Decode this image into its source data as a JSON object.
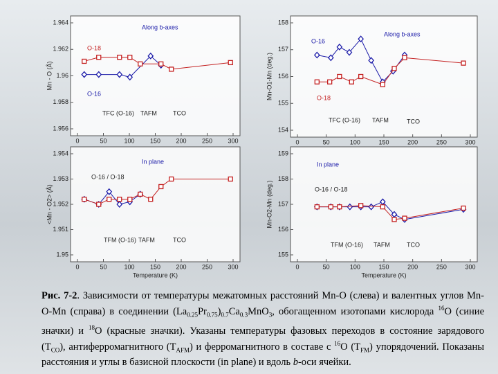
{
  "chart_data": [
    {
      "type": "line",
      "ylabel": "Mn - O (Å)",
      "xlim": [
        0,
        300
      ],
      "xticks": [
        0,
        50,
        100,
        150,
        200,
        250,
        300
      ],
      "ylim": [
        1.956,
        1.964
      ],
      "yticks": [
        1.956,
        1.958,
        1.96,
        1.962,
        1.964
      ],
      "annotations": [
        "Along b-axes",
        "O-18",
        "O-16",
        "TFC (O-16)",
        "TAFM",
        "TCO"
      ],
      "series": [
        {
          "name": "O-16",
          "color": "#1a1aa8",
          "x": [
            13,
            41,
            81,
            101,
            141,
            161
          ],
          "values": [
            1.9601,
            1.9601,
            1.9601,
            1.9599,
            1.9615,
            1.9608
          ]
        },
        {
          "name": "O-18",
          "color": "#c42020",
          "x": [
            13,
            41,
            81,
            101,
            121,
            161,
            181,
            295
          ],
          "values": [
            1.9611,
            1.9614,
            1.9614,
            1.9614,
            1.9609,
            1.9609,
            1.9605,
            1.961
          ]
        }
      ]
    },
    {
      "type": "line",
      "ylabel": "Mn-O1-Mn (deg.)",
      "xlim": [
        0,
        300
      ],
      "xticks": [
        0,
        50,
        100,
        150,
        200,
        250,
        300
      ],
      "ylim": [
        154,
        158
      ],
      "yticks": [
        154,
        155,
        156,
        157,
        158
      ],
      "annotations": [
        "O-16",
        "Along b-axes",
        "O-18",
        "TFC (O-16)",
        "TAFM",
        "TCO"
      ],
      "series": [
        {
          "name": "O-16",
          "color": "#1a1aa8",
          "x": [
            34,
            58,
            73,
            90,
            110,
            128,
            148,
            166,
            186
          ],
          "values": [
            156.8,
            156.7,
            157.1,
            156.9,
            157.4,
            156.6,
            155.8,
            156.2,
            156.8
          ]
        },
        {
          "name": "O-18",
          "color": "#c42020",
          "x": [
            34,
            56,
            73,
            94,
            110,
            148,
            168,
            186,
            288
          ],
          "values": [
            155.8,
            155.8,
            156,
            155.8,
            156,
            155.7,
            156.3,
            156.7,
            156.5
          ]
        }
      ]
    },
    {
      "type": "line",
      "ylabel": "<Mn - O2> (Å)",
      "xlabel": "Temperature (K)",
      "xlim": [
        0,
        300
      ],
      "xticks": [
        0,
        50,
        100,
        150,
        200,
        250,
        300
      ],
      "ylim": [
        1.95,
        1.954
      ],
      "yticks": [
        1.95,
        1.951,
        1.952,
        1.953,
        1.954
      ],
      "annotations": [
        "In plane",
        "O-16 / O-18",
        "TFM (O-16)",
        "TAFM",
        "TCO"
      ],
      "series": [
        {
          "name": "O-16",
          "color": "#1a1aa8",
          "x": [
            13,
            41,
            61,
            81,
            101,
            121
          ],
          "values": [
            1.9522,
            1.952,
            1.9525,
            1.952,
            1.9521,
            1.9524
          ]
        },
        {
          "name": "O-18",
          "color": "#c42020",
          "x": [
            13,
            41,
            61,
            81,
            101,
            121,
            141,
            161,
            181,
            295
          ],
          "values": [
            1.9522,
            1.952,
            1.9522,
            1.9522,
            1.9522,
            1.9524,
            1.9522,
            1.9527,
            1.953,
            1.953
          ]
        }
      ]
    },
    {
      "type": "line",
      "ylabel": "Mn-O2-Mn (deg.)",
      "xlabel": "Temperature (K)",
      "xlim": [
        0,
        300
      ],
      "xticks": [
        0,
        50,
        100,
        150,
        200,
        250,
        300
      ],
      "ylim": [
        155,
        159
      ],
      "yticks": [
        155,
        156,
        157,
        158,
        159
      ],
      "annotations": [
        "In plane",
        "O-16 / O-18",
        "TFM (O-16)",
        "TAFM",
        "TCO"
      ],
      "series": [
        {
          "name": "O-16",
          "color": "#1a1aa8",
          "x": [
            34,
            58,
            73,
            91,
            110,
            128,
            148,
            168,
            186,
            288
          ],
          "values": [
            156.9,
            156.9,
            156.9,
            156.9,
            156.9,
            156.9,
            157.1,
            156.6,
            156.4,
            156.8
          ]
        },
        {
          "name": "O-18",
          "color": "#c42020",
          "x": [
            34,
            58,
            73,
            110,
            148,
            168,
            186,
            288
          ],
          "values": [
            156.9,
            156.9,
            156.9,
            156.95,
            156.9,
            156.4,
            156.45,
            156.85
          ]
        }
      ]
    }
  ],
  "caption": {
    "parts": [
      "Рис. 7-2",
      ". Зависимости от температуры межатомных расстояний Mn-O (слева) и валентных углов Mn-O-Mn (справа) в соединении (La",
      "0.25",
      "Pr",
      "0.75",
      ")",
      "0.7",
      "Ca",
      "0.3",
      "MnO",
      "3",
      ", обогащенном изотопами кислорода ",
      "16",
      "O (синие значки) и ",
      "18",
      "O (красные значки). Указаны температуры фазовых переходов в состояние зарядового (T",
      "CO",
      "), антиферромагнитного (T",
      "AFM",
      ") и ферромагнитного в составе с ",
      "16",
      "O (T",
      "FM",
      ") упорядочений. Показаны расстояния и углы в базисной плоскости (in plane) и вдоль ",
      "b",
      "-оси ячейки."
    ]
  }
}
